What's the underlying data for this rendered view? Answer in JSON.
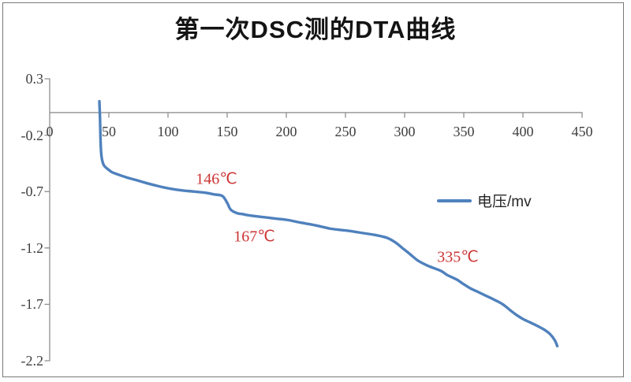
{
  "title": "第一次DSC测的DTA曲线",
  "legend": {
    "label": "电压/mv"
  },
  "colors": {
    "series": "#4f81bd",
    "annotation": "#cc3333",
    "axis": "#8f8f8f",
    "tick_text": "#3f3f3f",
    "title_text": "#141414",
    "border": "#787878"
  },
  "chart_data": {
    "type": "line",
    "title": "第一次DSC测的DTA曲线",
    "xlabel": "",
    "ylabel": "",
    "grid": false,
    "legend_position": "middle-right",
    "xlim": [
      0,
      450
    ],
    "ylim": [
      -2.2,
      0.3
    ],
    "x_ticks": [
      0,
      50,
      100,
      150,
      200,
      250,
      300,
      350,
      400,
      450
    ],
    "y_ticks": [
      0.3,
      -0.2,
      -0.7,
      -1.2,
      -1.7,
      -2.2
    ],
    "series": [
      {
        "name": "电压/mv",
        "color": "#4f81bd",
        "smooth": true,
        "points": [
          [
            42,
            0.1
          ],
          [
            42.5,
            -0.05
          ],
          [
            43,
            -0.25
          ],
          [
            43.5,
            -0.36
          ],
          [
            44.5,
            -0.43
          ],
          [
            46,
            -0.47
          ],
          [
            49,
            -0.5
          ],
          [
            53,
            -0.53
          ],
          [
            58,
            -0.55
          ],
          [
            65,
            -0.575
          ],
          [
            72,
            -0.595
          ],
          [
            80,
            -0.62
          ],
          [
            91,
            -0.65
          ],
          [
            102,
            -0.675
          ],
          [
            112,
            -0.69
          ],
          [
            122,
            -0.7
          ],
          [
            131,
            -0.71
          ],
          [
            139,
            -0.725
          ],
          [
            146,
            -0.74
          ],
          [
            150,
            -0.8
          ],
          [
            153,
            -0.86
          ],
          [
            158,
            -0.89
          ],
          [
            163,
            -0.9
          ],
          [
            168,
            -0.91
          ],
          [
            175,
            -0.92
          ],
          [
            183,
            -0.93
          ],
          [
            191,
            -0.94
          ],
          [
            200,
            -0.95
          ],
          [
            212,
            -0.975
          ],
          [
            225,
            -1.0
          ],
          [
            238,
            -1.03
          ],
          [
            250,
            -1.045
          ],
          [
            263,
            -1.065
          ],
          [
            275,
            -1.085
          ],
          [
            285,
            -1.11
          ],
          [
            292,
            -1.15
          ],
          [
            298,
            -1.2
          ],
          [
            304,
            -1.25
          ],
          [
            311,
            -1.31
          ],
          [
            318,
            -1.35
          ],
          [
            325,
            -1.38
          ],
          [
            331,
            -1.405
          ],
          [
            336,
            -1.44
          ],
          [
            340,
            -1.46
          ],
          [
            344,
            -1.48
          ],
          [
            349,
            -1.515
          ],
          [
            355,
            -1.555
          ],
          [
            362,
            -1.59
          ],
          [
            369,
            -1.625
          ],
          [
            376,
            -1.66
          ],
          [
            383,
            -1.7
          ],
          [
            389,
            -1.75
          ],
          [
            394,
            -1.79
          ],
          [
            400,
            -1.83
          ],
          [
            406,
            -1.86
          ],
          [
            412,
            -1.89
          ],
          [
            418,
            -1.925
          ],
          [
            423,
            -1.965
          ],
          [
            427,
            -2.02
          ],
          [
            429,
            -2.07
          ]
        ]
      }
    ],
    "annotations": [
      {
        "text": "146℃",
        "x": 141,
        "y": -0.59
      },
      {
        "text": "167℃",
        "x": 173,
        "y": -1.1
      },
      {
        "text": "335℃",
        "x": 345,
        "y": -1.28
      }
    ]
  }
}
